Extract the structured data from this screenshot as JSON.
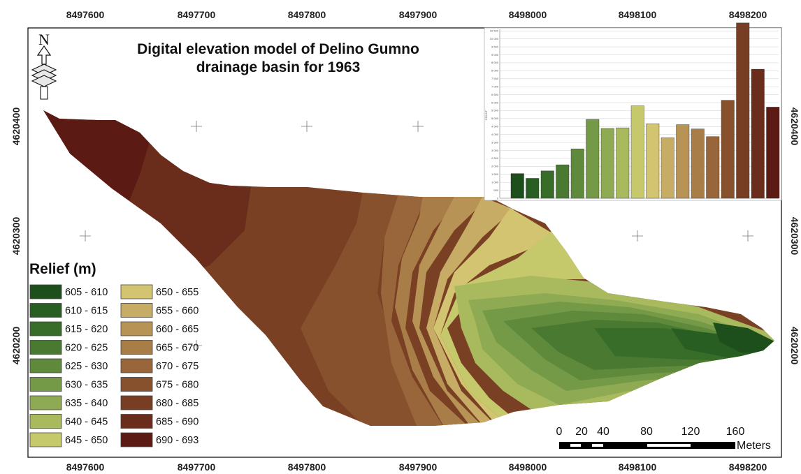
{
  "map": {
    "title_line1": "Digital elevation model of Delino Gumno",
    "title_line2": "drainage basin for 1963",
    "north_letter": "N",
    "x_ticks": [
      "8497600",
      "8497700",
      "8497800",
      "8497900",
      "8498000",
      "8498100",
      "8498200"
    ],
    "y_ticks": [
      "4620400",
      "4620300",
      "4620200"
    ]
  },
  "legend": {
    "title": "Relief (m)",
    "classes": [
      {
        "label": "605 - 610",
        "color": "#1c4f1c"
      },
      {
        "label": "610 - 615",
        "color": "#285e22"
      },
      {
        "label": "615 - 620",
        "color": "#376c29"
      },
      {
        "label": "620 - 625",
        "color": "#4a7a32"
      },
      {
        "label": "625 - 630",
        "color": "#5f8a3c"
      },
      {
        "label": "630 - 635",
        "color": "#759a47"
      },
      {
        "label": "635 - 640",
        "color": "#8eaa52"
      },
      {
        "label": "640 - 645",
        "color": "#a8b95e"
      },
      {
        "label": "645 - 650",
        "color": "#c6c86c"
      },
      {
        "label": "650 - 655",
        "color": "#d3c472"
      },
      {
        "label": "655 - 660",
        "color": "#c6ac64"
      },
      {
        "label": "660 - 665",
        "color": "#b79455"
      },
      {
        "label": "665 - 670",
        "color": "#a87d47"
      },
      {
        "label": "670 - 675",
        "color": "#98663a"
      },
      {
        "label": "675 - 680",
        "color": "#87512e"
      },
      {
        "label": "680 - 685",
        "color": "#783e24"
      },
      {
        "label": "685 - 690",
        "color": "#6a2c1b"
      },
      {
        "label": "690 - 693",
        "color": "#5c1a14"
      }
    ]
  },
  "scalebar": {
    "labels": [
      "0",
      "20",
      "40",
      "80",
      "120",
      "160"
    ],
    "unit": "Meters"
  },
  "chart_data": {
    "type": "bar",
    "ylabel": "COUNT",
    "yticks": [
      "0",
      "500",
      "1 000",
      "1 500",
      "2 000",
      "2 500",
      "3 000",
      "3 500",
      "4 000",
      "4 500",
      "5 000",
      "5 500",
      "6 000",
      "6 500",
      "7 000",
      "7 500",
      "8 000",
      "8 500",
      "9 000",
      "9 500",
      "10 000",
      "10 500"
    ],
    "ylim": [
      0,
      10600
    ],
    "grid": true,
    "categories": [
      "605 - 610",
      "610 - 615",
      "615 - 620",
      "620 - 625",
      "625 - 630",
      "630 - 635",
      "635 - 640",
      "640 - 645",
      "645 - 650",
      "650 - 655",
      "655 - 660",
      "660 - 665",
      "665 - 670",
      "670 - 675",
      "675 - 680",
      "680 - 685",
      "685 - 690",
      "690 - 693"
    ],
    "values": [
      1550,
      1250,
      1720,
      2100,
      3100,
      4950,
      4380,
      4420,
      5800,
      4680,
      3800,
      4620,
      4350,
      3870,
      6150,
      11000,
      8100,
      5720
    ]
  }
}
